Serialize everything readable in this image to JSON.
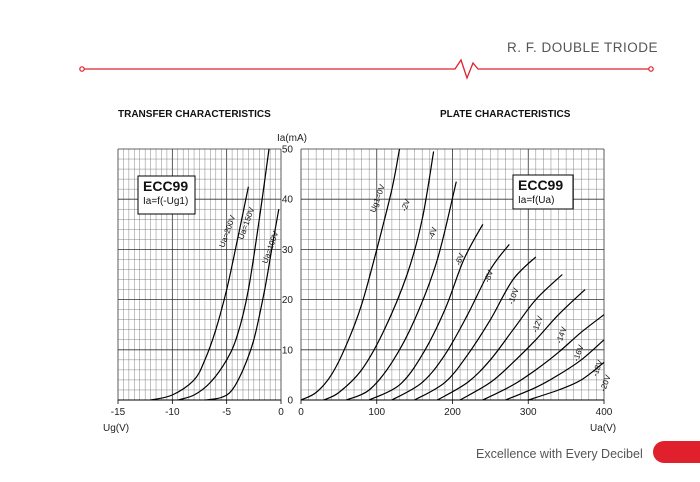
{
  "header": {
    "title": "R. F. DOUBLE TRIODE",
    "accent": "#e0202c"
  },
  "footer": {
    "tagline": "Excellence with Every Decibel"
  },
  "chart_data": [
    {
      "type": "line",
      "heading": "TRANSFER CHARACTERISTICS",
      "box_title": "ECC99",
      "box_subtitle": "Ia=f(-Ug1)",
      "xlabel": "Ug(V)",
      "ylabel": "Ia(mA)",
      "xlim": [
        -15,
        0
      ],
      "ylim": [
        0,
        50
      ],
      "xticks": [
        "-15",
        "-10",
        "-5",
        "0"
      ],
      "yticks": [
        "0",
        "10",
        "20",
        "30",
        "40",
        "50"
      ],
      "grid": true,
      "series": [
        {
          "name": "Ua=200V",
          "points": [
            [
              -12,
              0
            ],
            [
              -10,
              1
            ],
            [
              -8,
              4
            ],
            [
              -7,
              8
            ],
            [
              -6,
              14
            ],
            [
              -5,
              22
            ],
            [
              -4,
              32
            ],
            [
              -3,
              42.5
            ]
          ]
        },
        {
          "name": "Ua=150V",
          "points": [
            [
              -9.5,
              0
            ],
            [
              -8,
              1
            ],
            [
              -6.5,
              3.5
            ],
            [
              -5,
              8
            ],
            [
              -4,
              13
            ],
            [
              -3,
              22
            ],
            [
              -2,
              36
            ],
            [
              -1.1,
              50
            ]
          ]
        },
        {
          "name": "Ua=100V",
          "points": [
            [
              -7,
              0
            ],
            [
              -5.5,
              0.5
            ],
            [
              -4.5,
              2
            ],
            [
              -3.5,
              6
            ],
            [
              -2.5,
              12
            ],
            [
              -1.5,
              22
            ],
            [
              -0.7,
              32
            ],
            [
              -0.2,
              38
            ]
          ]
        }
      ]
    },
    {
      "type": "line",
      "heading": "PLATE CHARACTERISTICS",
      "box_title": "ECC99",
      "box_subtitle": "Ia=f(Ua)",
      "xlabel": "Ua(V)",
      "ylabel": "Ia(mA)",
      "xlim": [
        0,
        400
      ],
      "ylim": [
        0,
        50
      ],
      "xticks": [
        "0",
        "100",
        "200",
        "300",
        "400"
      ],
      "yticks": [
        "0",
        "10",
        "20",
        "30",
        "40",
        "50"
      ],
      "grid": true,
      "series": [
        {
          "name": "Ug1=0V",
          "points": [
            [
              0,
              0
            ],
            [
              20,
              1.5
            ],
            [
              40,
              5
            ],
            [
              60,
              11
            ],
            [
              80,
              19
            ],
            [
              100,
              30
            ],
            [
              120,
              42
            ],
            [
              130,
              50
            ]
          ]
        },
        {
          "name": "-2V",
          "points": [
            [
              30,
              0
            ],
            [
              50,
              1.5
            ],
            [
              80,
              6
            ],
            [
              110,
              14
            ],
            [
              140,
              25
            ],
            [
              160,
              36
            ],
            [
              175,
              49.5
            ]
          ]
        },
        {
          "name": "-4V",
          "points": [
            [
              60,
              0
            ],
            [
              90,
              2
            ],
            [
              120,
              7.5
            ],
            [
              150,
              16
            ],
            [
              180,
              28
            ],
            [
              205,
              43.5
            ]
          ]
        },
        {
          "name": "-6V",
          "points": [
            [
              90,
              0
            ],
            [
              130,
              3
            ],
            [
              160,
              9
            ],
            [
              190,
              18
            ],
            [
              215,
              28
            ],
            [
              240,
              35
            ]
          ]
        },
        {
          "name": "-8V",
          "points": [
            [
              120,
              0
            ],
            [
              160,
              3.5
            ],
            [
              190,
              9
            ],
            [
              220,
              17
            ],
            [
              250,
              26
            ],
            [
              275,
              31
            ]
          ]
        },
        {
          "name": "-10V",
          "points": [
            [
              150,
              0
            ],
            [
              190,
              3.5
            ],
            [
              220,
              9
            ],
            [
              250,
              16
            ],
            [
              280,
              24
            ],
            [
              310,
              28.5
            ]
          ]
        },
        {
          "name": "-12V",
          "points": [
            [
              180,
              0
            ],
            [
              220,
              3.5
            ],
            [
              250,
              8
            ],
            [
              280,
              14
            ],
            [
              310,
              20
            ],
            [
              345,
              25
            ]
          ]
        },
        {
          "name": "-14V",
          "points": [
            [
              210,
              0
            ],
            [
              250,
              3.5
            ],
            [
              280,
              7.5
            ],
            [
              310,
              12
            ],
            [
              340,
              17
            ],
            [
              375,
              22
            ]
          ]
        },
        {
          "name": "-16V",
          "points": [
            [
              240,
              0
            ],
            [
              280,
              3
            ],
            [
              310,
              6
            ],
            [
              340,
              9.5
            ],
            [
              370,
              13.5
            ],
            [
              400,
              17
            ]
          ]
        },
        {
          "name": "-18V",
          "points": [
            [
              270,
              0
            ],
            [
              310,
              2.5
            ],
            [
              340,
              5
            ],
            [
              370,
              8
            ],
            [
              400,
              12
            ]
          ]
        },
        {
          "name": "-20V",
          "points": [
            [
              300,
              0
            ],
            [
              340,
              2
            ],
            [
              370,
              4
            ],
            [
              400,
              7.5
            ]
          ]
        }
      ]
    }
  ]
}
